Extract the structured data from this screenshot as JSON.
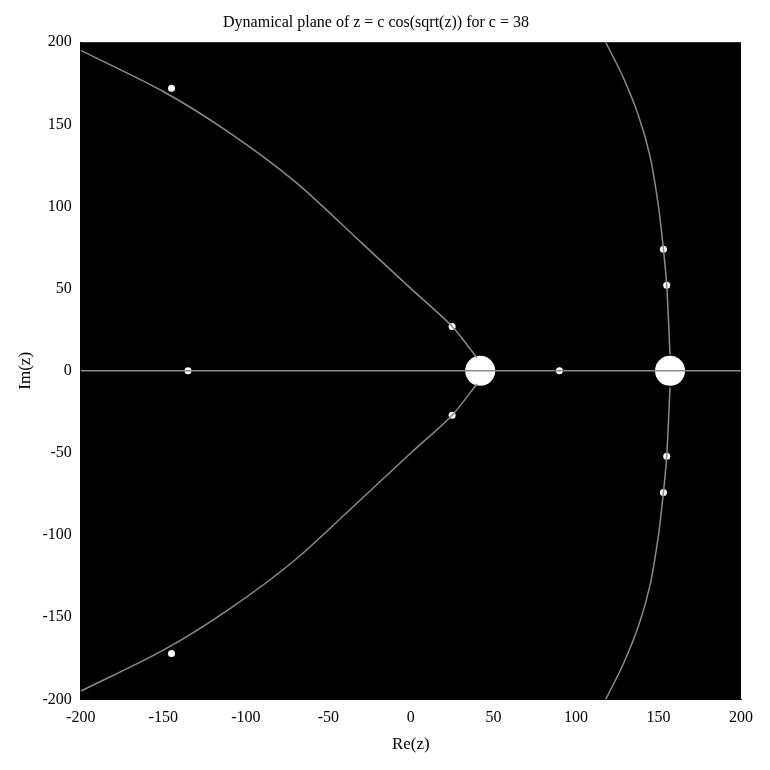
{
  "chart_data": {
    "type": "scatter",
    "title": "Dynamical plane of z = c cos(sqrt(z)) for c = 38",
    "x_label": "Re(z)",
    "y_label": "Im(z)",
    "xlim": [
      -200,
      200
    ],
    "ylim": [
      -200,
      200
    ],
    "xticks": [
      -200,
      -150,
      -100,
      -50,
      0,
      50,
      100,
      150,
      200
    ],
    "yticks": [
      -200,
      -150,
      -100,
      -50,
      0,
      50,
      100,
      150,
      200
    ],
    "grid": false,
    "series": [
      {
        "type": "line",
        "color": "#8a8a8a",
        "line_style": "solid",
        "x": [
          40,
          25,
          0,
          -30,
          -70,
          -110,
          -150,
          -200
        ],
        "values": [
          8,
          27,
          50,
          78,
          115,
          145,
          170,
          195
        ]
      },
      {
        "type": "line",
        "color": "#8a8a8a",
        "line_style": "solid",
        "x": [
          40,
          25,
          0,
          -30,
          -70,
          -110,
          -150,
          -200
        ],
        "values": [
          -8,
          -27,
          -50,
          -78,
          -115,
          -145,
          -170,
          -195
        ]
      },
      {
        "type": "line",
        "color": "#8a8a8a",
        "line_style": "solid",
        "x": [
          -200,
          200
        ],
        "values": [
          0,
          0
        ]
      },
      {
        "type": "line",
        "color": "#8a8a8a",
        "line_style": "solid",
        "x": [
          157,
          155,
          153,
          150,
          145,
          138,
          128,
          118
        ],
        "values": [
          10,
          52,
          74,
          100,
          130,
          155,
          180,
          200
        ]
      },
      {
        "type": "line",
        "color": "#8a8a8a",
        "line_style": "solid",
        "x": [
          157,
          155,
          153,
          150,
          145,
          138,
          128,
          118
        ],
        "values": [
          -10,
          -52,
          -74,
          -100,
          -130,
          -155,
          -180,
          -200
        ]
      },
      {
        "type": "scatter",
        "color": "#ffffff",
        "marker": "dot",
        "x": [
          25,
          25,
          155,
          155,
          153,
          153,
          90,
          -135,
          -145,
          -145
        ],
        "values": [
          27,
          -27,
          52,
          -52,
          74,
          -74,
          0,
          0,
          172,
          -172
        ]
      },
      {
        "type": "scatter",
        "color": "#ffffff",
        "marker": "circle",
        "x": [
          42,
          157
        ],
        "values": [
          0,
          0
        ]
      }
    ]
  }
}
